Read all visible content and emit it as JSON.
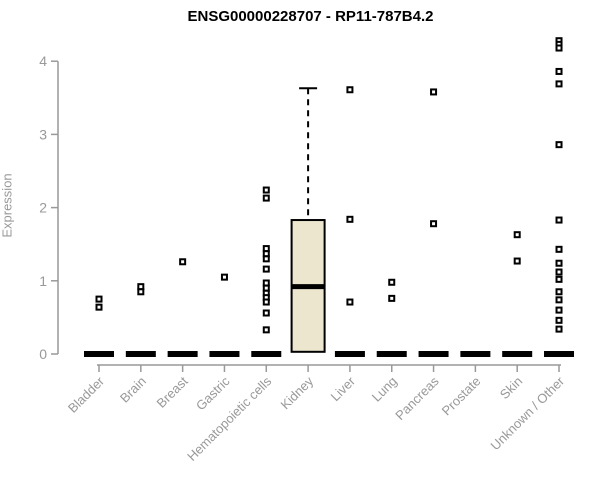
{
  "title": "ENSG00000228707 - RP11-787B4.2",
  "chart_data": {
    "type": "boxplot",
    "title": "ENSG00000228707 - RP11-787B4.2",
    "xlabel": "",
    "ylabel": "Expression",
    "ylim": [
      0,
      4.4
    ],
    "yticks": [
      0,
      1,
      2,
      3,
      4
    ],
    "grid": false,
    "legend": "none",
    "categories": [
      "Bladder",
      "Brain",
      "Breast",
      "Gastric",
      "Hematopoietic cells",
      "Kidney",
      "Liver",
      "Lung",
      "Pancreas",
      "Prostate",
      "Skin",
      "Unknown / Other"
    ],
    "boxes": [
      {
        "category": "Bladder",
        "median": 0,
        "q1": 0,
        "q3": 0,
        "whisker_low": 0,
        "whisker_high": 0,
        "outliers": [
          0.75,
          0.64
        ]
      },
      {
        "category": "Brain",
        "median": 0,
        "q1": 0,
        "q3": 0,
        "whisker_low": 0,
        "whisker_high": 0,
        "outliers": [
          0.92,
          0.85
        ]
      },
      {
        "category": "Breast",
        "median": 0,
        "q1": 0,
        "q3": 0,
        "whisker_low": 0,
        "whisker_high": 0,
        "outliers": [
          1.26
        ]
      },
      {
        "category": "Gastric",
        "median": 0,
        "q1": 0,
        "q3": 0,
        "whisker_low": 0,
        "whisker_high": 0,
        "outliers": [
          1.05
        ]
      },
      {
        "category": "Hematopoietic cells",
        "median": 0,
        "q1": 0,
        "q3": 0,
        "whisker_low": 0,
        "whisker_high": 0,
        "outliers": [
          2.24,
          2.13,
          1.44,
          1.37,
          1.3,
          1.16,
          0.97,
          0.9,
          0.83,
          0.77,
          0.71,
          0.56,
          0.33
        ]
      },
      {
        "category": "Kidney",
        "median": 0.92,
        "q1": 0.03,
        "q3": 1.83,
        "whisker_low": 0.03,
        "whisker_high": 3.63,
        "outliers": []
      },
      {
        "category": "Liver",
        "median": 0,
        "q1": 0,
        "q3": 0,
        "whisker_low": 0,
        "whisker_high": 0,
        "outliers": [
          3.61,
          1.84,
          0.71
        ]
      },
      {
        "category": "Lung",
        "median": 0,
        "q1": 0,
        "q3": 0,
        "whisker_low": 0,
        "whisker_high": 0,
        "outliers": [
          0.98,
          0.76
        ]
      },
      {
        "category": "Pancreas",
        "median": 0,
        "q1": 0,
        "q3": 0,
        "whisker_low": 0,
        "whisker_high": 0,
        "outliers": [
          3.58,
          1.78
        ]
      },
      {
        "category": "Prostate",
        "median": 0,
        "q1": 0,
        "q3": 0,
        "whisker_low": 0,
        "whisker_high": 0,
        "outliers": []
      },
      {
        "category": "Skin",
        "median": 0,
        "q1": 0,
        "q3": 0,
        "whisker_low": 0,
        "whisker_high": 0,
        "outliers": [
          1.63,
          1.27
        ]
      },
      {
        "category": "Unknown / Other",
        "median": 0,
        "q1": 0,
        "q3": 0,
        "whisker_low": 0,
        "whisker_high": 0,
        "outliers": [
          4.28,
          4.23,
          4.18,
          3.86,
          3.69,
          2.86,
          1.83,
          1.43,
          1.24,
          1.12,
          1.02,
          0.85,
          0.74,
          0.6,
          0.46,
          0.34
        ]
      }
    ],
    "colors": {
      "box_fill": "#ede6cf",
      "box_border": "#000000",
      "median": "#000000",
      "point": "#000000",
      "axis": "#999999",
      "tick_label": "#999999",
      "title": "#000000"
    }
  }
}
